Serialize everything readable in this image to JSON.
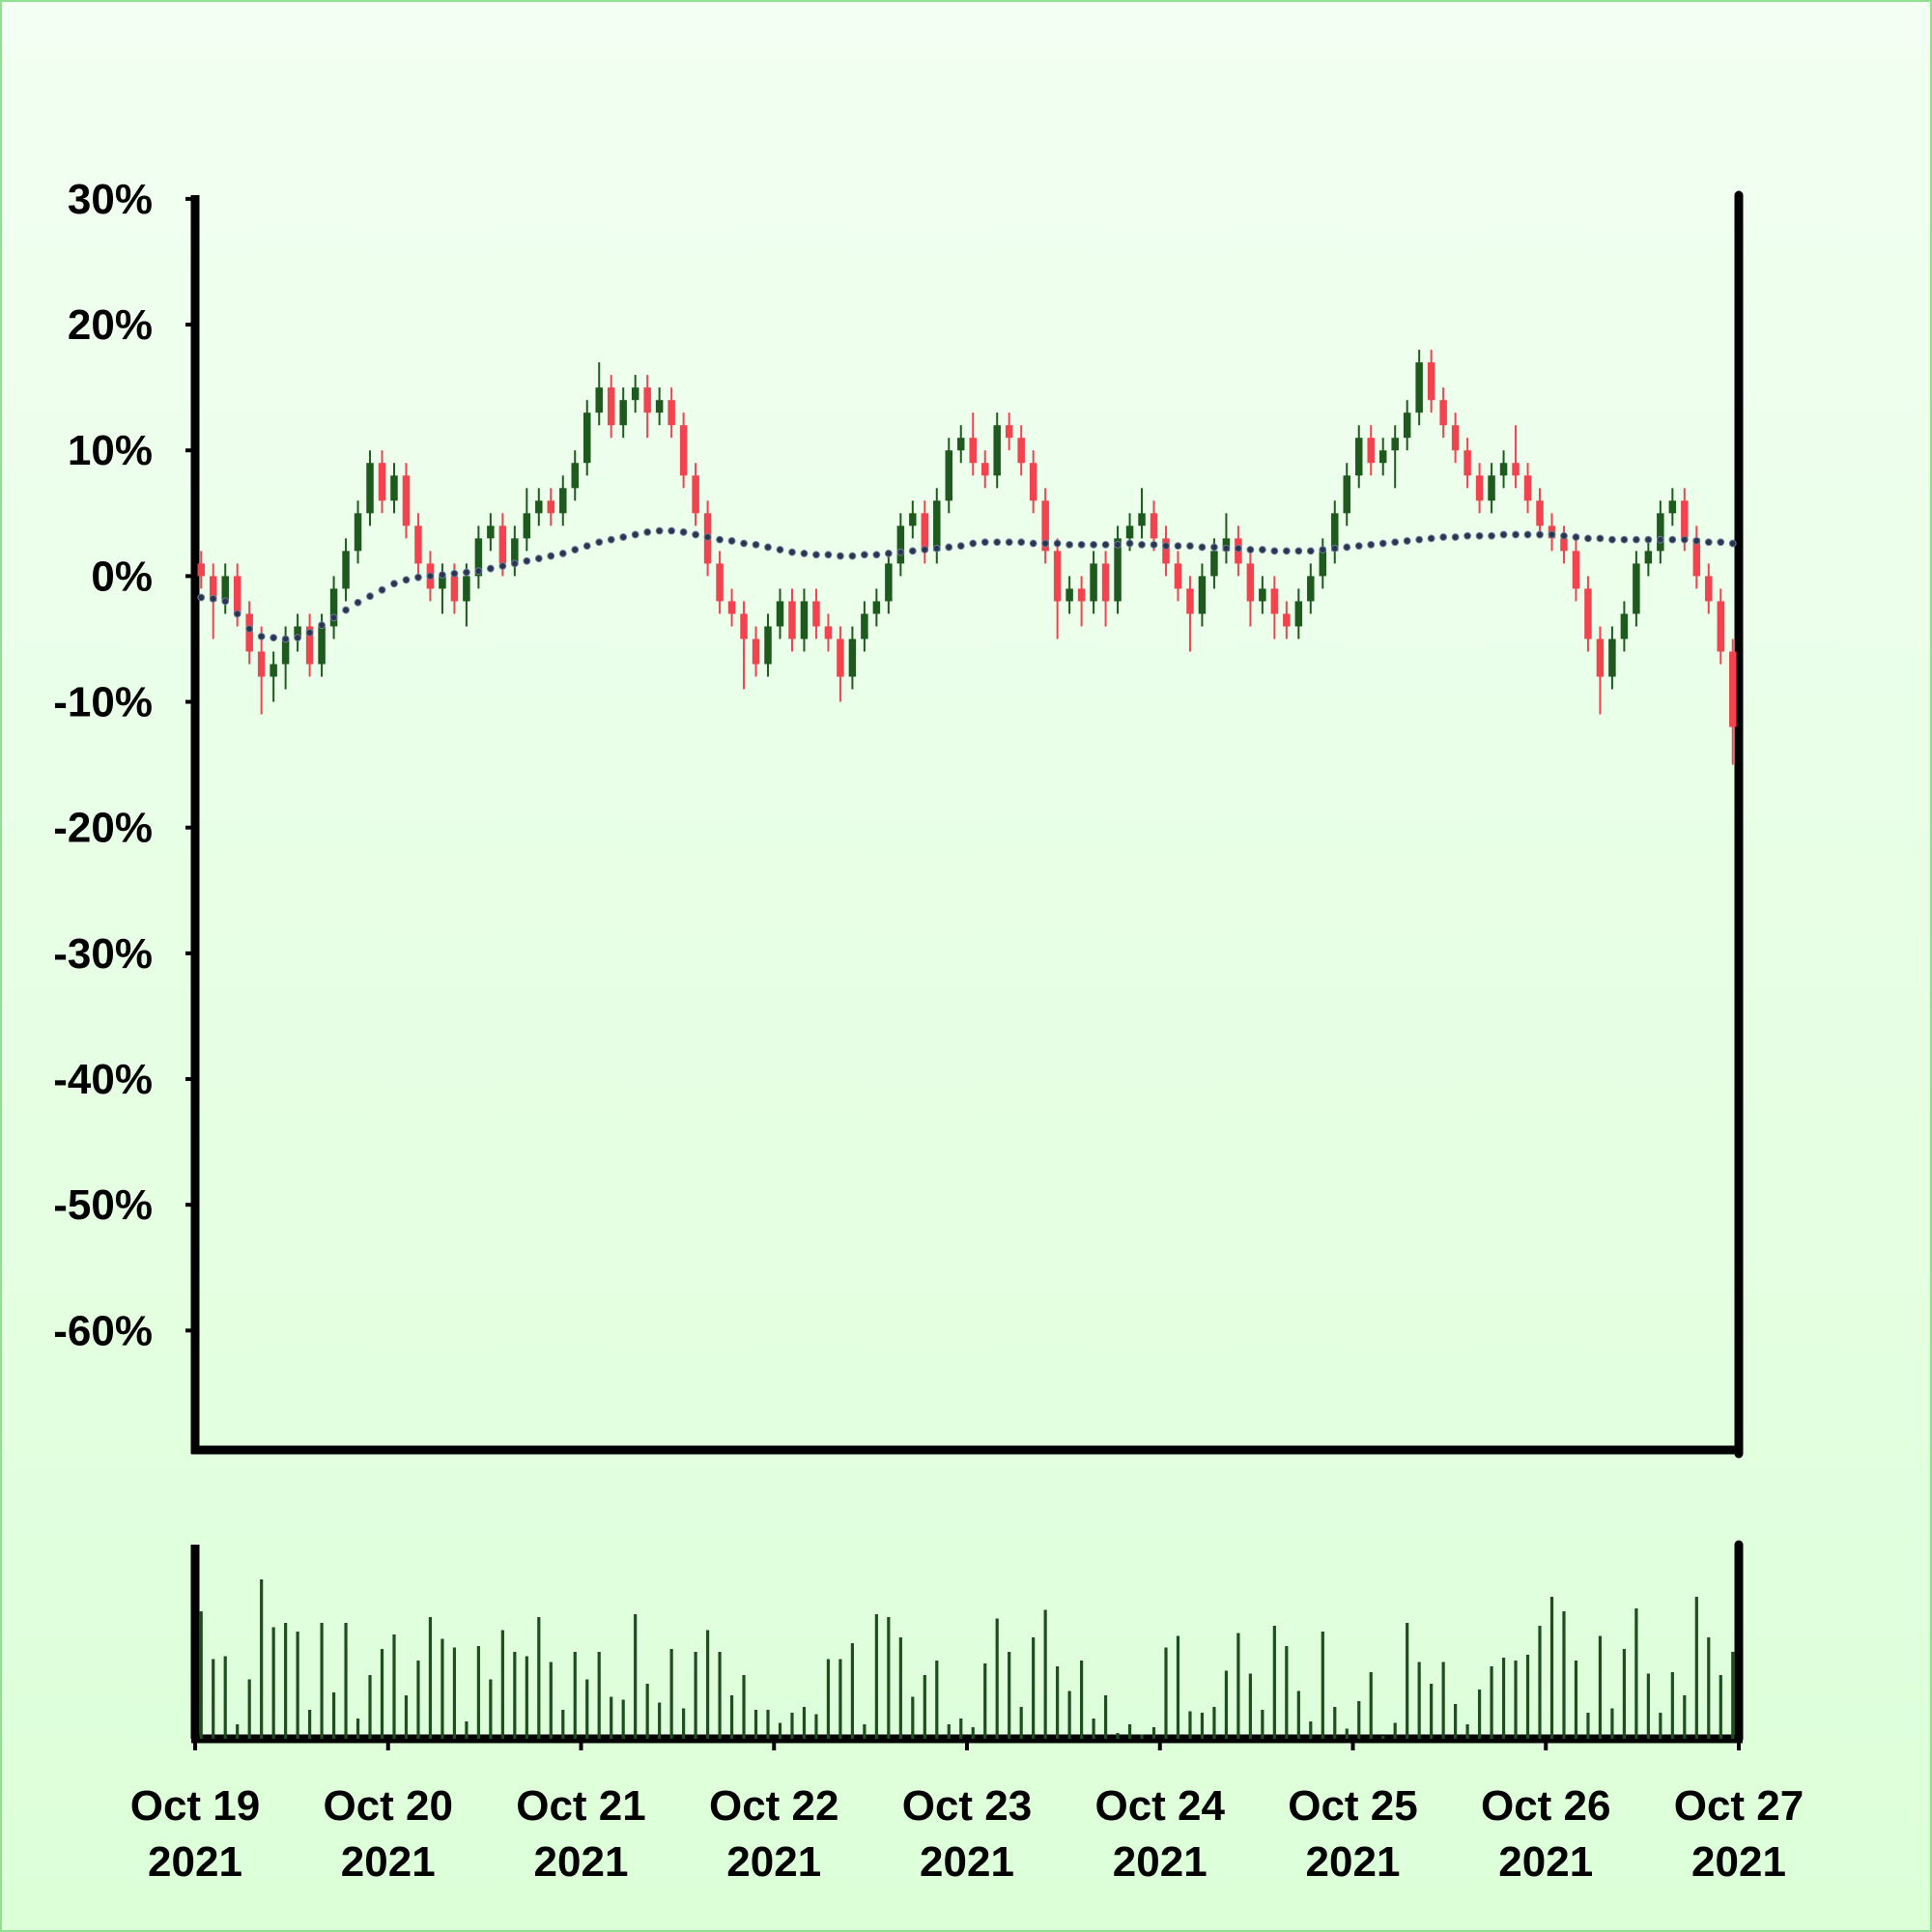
{
  "chart_data": {
    "type": "candlestick",
    "ylim": [
      -69.5,
      30.3
    ],
    "yticks": [
      {
        "value": 30,
        "label": "30%"
      },
      {
        "value": 20,
        "label": "20%"
      },
      {
        "value": 10,
        "label": "10%"
      },
      {
        "value": 0,
        "label": "0%"
      },
      {
        "value": -10,
        "label": "-10%"
      },
      {
        "value": -20,
        "label": "-20%"
      },
      {
        "value": -30,
        "label": "-30%"
      },
      {
        "value": -40,
        "label": "-40%"
      },
      {
        "value": -50,
        "label": "-50%"
      },
      {
        "value": -60,
        "label": "-60%"
      }
    ],
    "xlim": [
      0,
      128
    ],
    "xticks": [
      {
        "value": 0,
        "label": "Oct 19\n2021"
      },
      {
        "value": 16,
        "label": "Oct 20\n2021"
      },
      {
        "value": 32,
        "label": "Oct 21\n2021"
      },
      {
        "value": 48,
        "label": "Oct 22\n2021"
      },
      {
        "value": 64,
        "label": "Oct 23\n2021"
      },
      {
        "value": 80,
        "label": "Oct 24\n2021"
      },
      {
        "value": 96,
        "label": "Oct 25\n2021"
      },
      {
        "value": 112,
        "label": "Oct 26\n2021"
      },
      {
        "value": 128,
        "label": "Oct 27\n2021"
      }
    ],
    "up_color": "#1e5a1e",
    "down_color": "#f2434f",
    "open": [
      1,
      0,
      -2,
      0,
      -3,
      -6,
      -8,
      -7,
      -5,
      -4,
      -7,
      -4,
      -1,
      2,
      5,
      9,
      6,
      8,
      4,
      1,
      -1,
      0,
      -2,
      0,
      3,
      4,
      1,
      3,
      5,
      6,
      5,
      7,
      9,
      13,
      15,
      12,
      14,
      15,
      13,
      14,
      12,
      8,
      5,
      1,
      -2,
      -3,
      -5,
      -7,
      -4,
      -2,
      -5,
      -2,
      -4,
      -5,
      -8,
      -5,
      -3,
      -2,
      1,
      4,
      5,
      2,
      6,
      10,
      11,
      9,
      8,
      12,
      11,
      9,
      6,
      2,
      -2,
      -1,
      -2,
      1,
      -2,
      3,
      4,
      5,
      3,
      1,
      -1,
      -3,
      0,
      2,
      3,
      1,
      -2,
      -1,
      -3,
      -4,
      -2,
      0,
      2,
      5,
      8,
      11,
      9,
      10,
      11,
      13,
      17,
      14,
      12,
      10,
      8,
      6,
      8,
      9,
      8,
      6,
      4,
      3,
      2,
      -1,
      -5,
      -8,
      -5,
      -3,
      1,
      2,
      5,
      6,
      3,
      0,
      -2,
      -6
    ],
    "high": [
      2,
      1,
      1,
      1,
      -2,
      -4,
      -6,
      -4,
      -3,
      -3,
      -3,
      0,
      3,
      6,
      10,
      10,
      9,
      9,
      5,
      2,
      1,
      1,
      1,
      4,
      5,
      5,
      4,
      7,
      7,
      7,
      8,
      10,
      14,
      17,
      16,
      15,
      16,
      16,
      15,
      15,
      13,
      9,
      6,
      2,
      -1,
      -2,
      -4,
      -3,
      -1,
      -1,
      -1,
      -1,
      -3,
      -4,
      -4,
      -2,
      -1,
      2,
      5,
      6,
      6,
      7,
      11,
      12,
      13,
      10,
      13,
      13,
      12,
      10,
      7,
      3,
      0,
      0,
      2,
      2,
      4,
      5,
      7,
      6,
      4,
      2,
      0,
      1,
      3,
      5,
      4,
      2,
      0,
      0,
      -2,
      -1,
      1,
      3,
      6,
      9,
      12,
      12,
      11,
      12,
      14,
      18,
      18,
      15,
      13,
      11,
      9,
      9,
      10,
      12,
      9,
      7,
      5,
      4,
      3,
      0,
      -4,
      -4,
      -2,
      2,
      3,
      6,
      7,
      7,
      4,
      1,
      -1,
      -5
    ],
    "low": [
      -1,
      -5,
      -3,
      -4,
      -7,
      -11,
      -10,
      -9,
      -6,
      -8,
      -8,
      -5,
      -2,
      1,
      4,
      5,
      5,
      3,
      0,
      -2,
      -3,
      -3,
      -4,
      -1,
      2,
      0,
      0,
      2,
      4,
      4,
      4,
      6,
      8,
      12,
      11,
      11,
      13,
      11,
      12,
      11,
      7,
      4,
      0,
      -3,
      -4,
      -9,
      -8,
      -8,
      -5,
      -6,
      -6,
      -5,
      -6,
      -10,
      -9,
      -6,
      -4,
      -3,
      0,
      3,
      1,
      1,
      5,
      9,
      8,
      7,
      7,
      10,
      8,
      5,
      1,
      -5,
      -3,
      -4,
      -3,
      -4,
      -3,
      2,
      3,
      2,
      0,
      -2,
      -6,
      -4,
      -1,
      1,
      0,
      -4,
      -3,
      -5,
      -5,
      -5,
      -3,
      -1,
      1,
      4,
      7,
      8,
      8,
      7,
      10,
      12,
      13,
      11,
      9,
      7,
      5,
      5,
      7,
      7,
      5,
      3,
      2,
      1,
      -2,
      -6,
      -11,
      -9,
      -6,
      -4,
      0,
      1,
      4,
      2,
      -1,
      -3,
      -7,
      -15
    ],
    "close": [
      0,
      -2,
      0,
      -3,
      -6,
      -8,
      -7,
      -5,
      -4,
      -7,
      -4,
      -1,
      2,
      5,
      9,
      6,
      8,
      4,
      1,
      -1,
      0,
      -2,
      0,
      3,
      4,
      1,
      3,
      5,
      6,
      5,
      7,
      9,
      13,
      15,
      12,
      14,
      15,
      13,
      14,
      12,
      8,
      5,
      1,
      -2,
      -3,
      -5,
      -7,
      -4,
      -2,
      -5,
      -2,
      -4,
      -5,
      -8,
      -5,
      -3,
      -2,
      1,
      4,
      5,
      2,
      6,
      10,
      11,
      9,
      8,
      12,
      11,
      9,
      6,
      2,
      -2,
      -1,
      -2,
      1,
      -2,
      3,
      4,
      5,
      3,
      1,
      -1,
      -3,
      0,
      2,
      3,
      1,
      -2,
      -1,
      -3,
      -4,
      -2,
      0,
      2,
      5,
      8,
      11,
      9,
      10,
      11,
      13,
      17,
      14,
      12,
      10,
      8,
      6,
      8,
      9,
      8,
      6,
      4,
      3,
      2,
      -1,
      -5,
      -8,
      -5,
      -3,
      1,
      2,
      5,
      6,
      3,
      0,
      -2,
      -6,
      -12
    ],
    "ma": {
      "color": "#2b3550",
      "values": [
        -1.7,
        -1.8,
        -2.0,
        -3.0,
        -4.2,
        -4.8,
        -4.9,
        -5.0,
        -4.9,
        -4.5,
        -3.9,
        -3.3,
        -2.7,
        -2.1,
        -1.6,
        -1.1,
        -0.6,
        -0.3,
        -0.1,
        0.0,
        0.1,
        0.2,
        0.3,
        0.4,
        0.6,
        0.8,
        1.0,
        1.2,
        1.4,
        1.6,
        1.8,
        2.1,
        2.4,
        2.7,
        2.9,
        3.1,
        3.3,
        3.5,
        3.6,
        3.6,
        3.5,
        3.3,
        3.1,
        2.9,
        2.8,
        2.6,
        2.5,
        2.3,
        2.1,
        1.9,
        1.8,
        1.7,
        1.7,
        1.6,
        1.6,
        1.7,
        1.7,
        1.8,
        1.9,
        2.0,
        2.1,
        2.2,
        2.3,
        2.4,
        2.6,
        2.7,
        2.7,
        2.7,
        2.7,
        2.6,
        2.6,
        2.6,
        2.5,
        2.5,
        2.5,
        2.5,
        2.5,
        2.6,
        2.5,
        2.5,
        2.4,
        2.4,
        2.4,
        2.3,
        2.3,
        2.2,
        2.2,
        2.1,
        2.1,
        2.0,
        2.0,
        2.0,
        2.0,
        2.1,
        2.2,
        2.3,
        2.4,
        2.5,
        2.6,
        2.7,
        2.8,
        2.9,
        3.0,
        3.1,
        3.1,
        3.2,
        3.2,
        3.2,
        3.3,
        3.3,
        3.3,
        3.3,
        3.3,
        3.2,
        3.1,
        3.0,
        3.0,
        2.9,
        2.9,
        2.9,
        2.9,
        2.9,
        2.9,
        2.9,
        2.8,
        2.7,
        2.7,
        2.6
      ]
    },
    "volume": {
      "color": "#1e4d1e",
      "ylim": [
        0,
        134
      ],
      "values": [
        88,
        55,
        57,
        10,
        41,
        110,
        77,
        80,
        74,
        20,
        80,
        32,
        80,
        14,
        44,
        62,
        72,
        30,
        54,
        84,
        69,
        63,
        12,
        64,
        41,
        75,
        60,
        57,
        84,
        53,
        20,
        60,
        41,
        60,
        29,
        27,
        86,
        38,
        25,
        62,
        21,
        60,
        75,
        60,
        30,
        44,
        20,
        20,
        11,
        18,
        22,
        17,
        55,
        55,
        66,
        10,
        86,
        84,
        70,
        29,
        44,
        54,
        10,
        14,
        8,
        52,
        83,
        60,
        22,
        70,
        89,
        50,
        33,
        54,
        14,
        30,
        4,
        10,
        3,
        8,
        63,
        71,
        19,
        18,
        22,
        47,
        73,
        45,
        20,
        78,
        64,
        33,
        12,
        74,
        22,
        7,
        26,
        46,
        2,
        11,
        80,
        53,
        38,
        53,
        24,
        10,
        34,
        50,
        56,
        54,
        58,
        78,
        98,
        88,
        54,
        18,
        71,
        21,
        62,
        90,
        45,
        18,
        46,
        30,
        98,
        70,
        44,
        60
      ]
    }
  }
}
